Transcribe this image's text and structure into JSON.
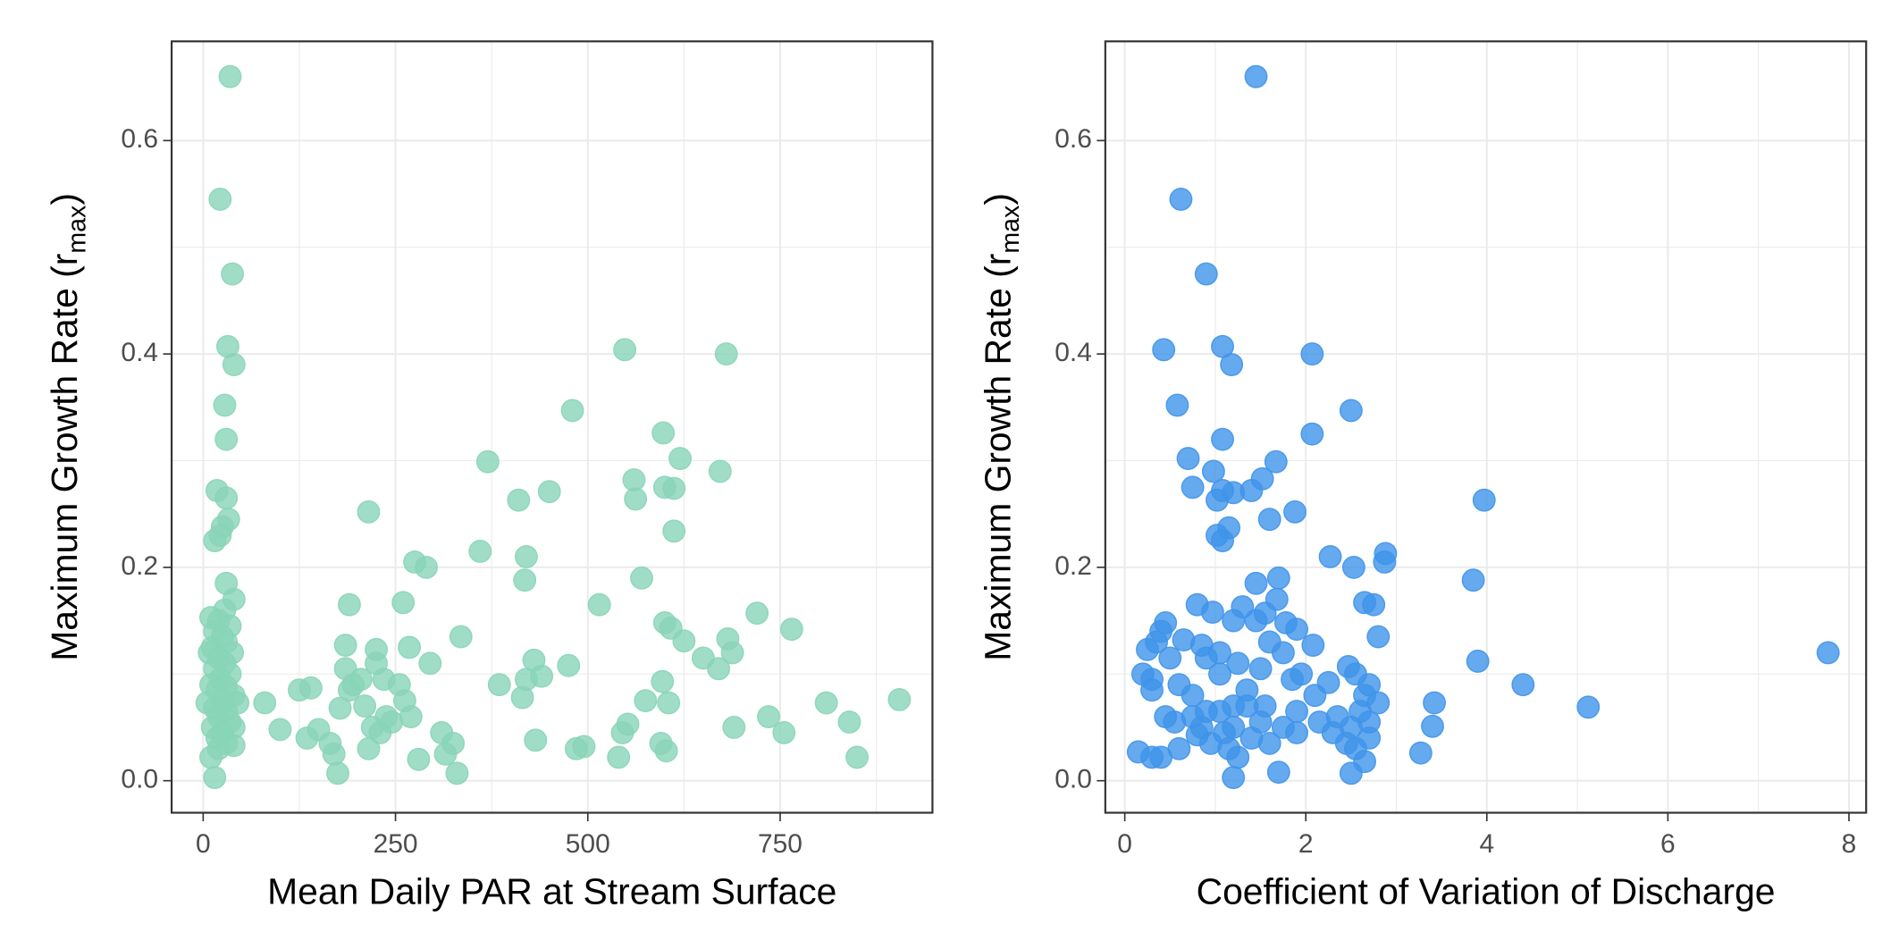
{
  "chart_data": [
    {
      "type": "scatter",
      "color": "#88d4b8",
      "xlabel": "Mean Daily PAR at Stream Surface",
      "ylabel_parts": [
        "Maximum Growth Rate (r",
        "max",
        ")"
      ],
      "xlim": [
        -41,
        948
      ],
      "ylim": [
        -0.03,
        0.693
      ],
      "xticks": [
        0,
        250,
        500,
        750
      ],
      "xminor": [
        125,
        375,
        625,
        875
      ],
      "yticks": [
        {
          "value": 0,
          "label": "0.0"
        },
        0.2,
        0.4,
        0.6
      ],
      "yminor": [
        0.1,
        0.3,
        0.5
      ],
      "grid": true,
      "x": [
        35,
        22,
        38,
        32,
        40,
        28,
        30,
        18,
        30,
        33,
        25,
        22,
        15,
        30,
        40,
        28,
        10,
        20,
        35,
        15,
        25,
        30,
        12,
        38,
        8,
        20,
        28,
        15,
        35,
        22,
        10,
        30,
        18,
        40,
        25,
        5,
        45,
        15,
        30,
        20,
        35,
        12,
        40,
        25,
        18,
        30,
        40,
        20,
        10,
        15,
        80,
        100,
        125,
        135,
        140,
        150,
        165,
        170,
        175,
        178,
        185,
        185,
        190,
        190,
        195,
        205,
        210,
        215,
        215,
        220,
        225,
        225,
        230,
        235,
        238,
        245,
        255,
        260,
        262,
        268,
        270,
        275,
        280,
        290,
        295,
        310,
        315,
        325,
        330,
        335,
        360,
        370,
        385,
        410,
        415,
        418,
        420,
        420,
        430,
        432,
        440,
        450,
        475,
        480,
        485,
        495,
        515,
        540,
        545,
        548,
        552,
        560,
        562,
        570,
        575,
        595,
        597,
        598,
        600,
        600,
        602,
        605,
        608,
        612,
        612,
        620,
        625,
        650,
        670,
        672,
        680,
        682,
        688,
        690,
        720,
        735,
        755,
        765,
        810,
        840,
        850,
        905
      ],
      "values": [
        0.66,
        0.545,
        0.475,
        0.407,
        0.39,
        0.352,
        0.32,
        0.272,
        0.265,
        0.245,
        0.238,
        0.23,
        0.225,
        0.185,
        0.17,
        0.16,
        0.153,
        0.15,
        0.145,
        0.14,
        0.135,
        0.13,
        0.125,
        0.12,
        0.12,
        0.115,
        0.11,
        0.105,
        0.1,
        0.095,
        0.09,
        0.088,
        0.085,
        0.08,
        0.075,
        0.073,
        0.073,
        0.068,
        0.065,
        0.06,
        0.055,
        0.05,
        0.05,
        0.045,
        0.04,
        0.035,
        0.033,
        0.03,
        0.022,
        0.003,
        0.073,
        0.048,
        0.085,
        0.04,
        0.087,
        0.048,
        0.035,
        0.025,
        0.007,
        0.068,
        0.127,
        0.105,
        0.165,
        0.085,
        0.09,
        0.095,
        0.07,
        0.252,
        0.03,
        0.05,
        0.123,
        0.11,
        0.045,
        0.095,
        0.06,
        0.055,
        0.09,
        0.167,
        0.075,
        0.125,
        0.06,
        0.205,
        0.02,
        0.2,
        0.11,
        0.045,
        0.025,
        0.035,
        0.007,
        0.135,
        0.215,
        0.299,
        0.09,
        0.263,
        0.078,
        0.188,
        0.21,
        0.095,
        0.113,
        0.038,
        0.098,
        0.271,
        0.108,
        0.347,
        0.03,
        0.032,
        0.165,
        0.022,
        0.045,
        0.404,
        0.053,
        0.282,
        0.264,
        0.19,
        0.075,
        0.035,
        0.093,
        0.326,
        0.148,
        0.275,
        0.028,
        0.073,
        0.143,
        0.274,
        0.234,
        0.302,
        0.131,
        0.115,
        0.105,
        0.29,
        0.4,
        0.133,
        0.12,
        0.05,
        0.157,
        0.06,
        0.045,
        0.142,
        0.073,
        0.055,
        0.022,
        0.076
      ]
    },
    {
      "type": "scatter",
      "color": "#3f94ea",
      "xlabel": "Coefficient of Variation of Discharge",
      "ylabel_parts": [
        "Maximum Growth Rate (r",
        "max",
        ")"
      ],
      "xlim": [
        -0.215,
        8.19
      ],
      "ylim": [
        -0.03,
        0.693
      ],
      "xticks": [
        0,
        2,
        4,
        6,
        8
      ],
      "xminor": [
        1,
        3,
        5,
        7
      ],
      "yticks": [
        {
          "value": 0,
          "label": "0.0"
        },
        0.2,
        0.4,
        0.6
      ],
      "yminor": [
        0.1,
        0.3,
        0.5
      ],
      "grid": true,
      "x": [
        1.45,
        0.62,
        0.9,
        0.43,
        1.08,
        1.18,
        2.07,
        0.58,
        2.5,
        1.08,
        2.07,
        0.7,
        1.67,
        0.98,
        1.52,
        0.75,
        1.4,
        1.08,
        1.2,
        1.02,
        3.97,
        1.88,
        1.6,
        1.15,
        1.02,
        1.08,
        2.27,
        2.88,
        2.87,
        2.53,
        3.85,
        1.45,
        1.7,
        1.68,
        2.65,
        2.75,
        0.8,
        1.3,
        0.97,
        1.55,
        1.78,
        0.45,
        1.45,
        1.2,
        0.4,
        1.9,
        0.35,
        0.65,
        1.6,
        0.85,
        2.08,
        0.25,
        1.05,
        2.8,
        7.77,
        3.9,
        0.9,
        1.25,
        0.5,
        1.75,
        1.5,
        2.47,
        0.2,
        0.3,
        1.05,
        1.95,
        2.55,
        2.25,
        0.6,
        1.85,
        4.4,
        2.7,
        0.3,
        1.35,
        0.75,
        2.1,
        2.65,
        2.8,
        3.42,
        1.2,
        1.55,
        5.12,
        0.9,
        1.35,
        1.05,
        2.6,
        0.45,
        0.75,
        1.9,
        2.35,
        0.55,
        1.5,
        2.15,
        2.7,
        0.85,
        1.2,
        1.75,
        2.5,
        3.4,
        1.1,
        0.8,
        1.9,
        2.3,
        1.4,
        2.7,
        0.95,
        1.6,
        2.45,
        0.6,
        1.15,
        2.55,
        0.15,
        3.27,
        0.3,
        0.4,
        1.25,
        2.65,
        1.7,
        2.5,
        1.2
      ],
      "values": [
        0.66,
        0.545,
        0.475,
        0.404,
        0.407,
        0.39,
        0.4,
        0.352,
        0.347,
        0.32,
        0.325,
        0.302,
        0.299,
        0.29,
        0.283,
        0.275,
        0.272,
        0.272,
        0.27,
        0.263,
        0.263,
        0.252,
        0.245,
        0.237,
        0.23,
        0.225,
        0.21,
        0.213,
        0.205,
        0.2,
        0.188,
        0.185,
        0.19,
        0.17,
        0.167,
        0.165,
        0.165,
        0.163,
        0.158,
        0.157,
        0.148,
        0.148,
        0.15,
        0.15,
        0.14,
        0.142,
        0.13,
        0.132,
        0.13,
        0.127,
        0.127,
        0.123,
        0.12,
        0.135,
        0.12,
        0.112,
        0.115,
        0.11,
        0.115,
        0.12,
        0.105,
        0.107,
        0.1,
        0.095,
        0.1,
        0.1,
        0.1,
        0.092,
        0.09,
        0.095,
        0.09,
        0.09,
        0.085,
        0.085,
        0.08,
        0.08,
        0.08,
        0.073,
        0.073,
        0.07,
        0.07,
        0.069,
        0.065,
        0.07,
        0.065,
        0.065,
        0.06,
        0.06,
        0.065,
        0.06,
        0.055,
        0.055,
        0.055,
        0.055,
        0.05,
        0.05,
        0.05,
        0.05,
        0.051,
        0.045,
        0.043,
        0.045,
        0.045,
        0.04,
        0.04,
        0.035,
        0.035,
        0.035,
        0.03,
        0.03,
        0.03,
        0.027,
        0.026,
        0.022,
        0.022,
        0.022,
        0.018,
        0.008,
        0.007,
        0.003
      ]
    }
  ]
}
